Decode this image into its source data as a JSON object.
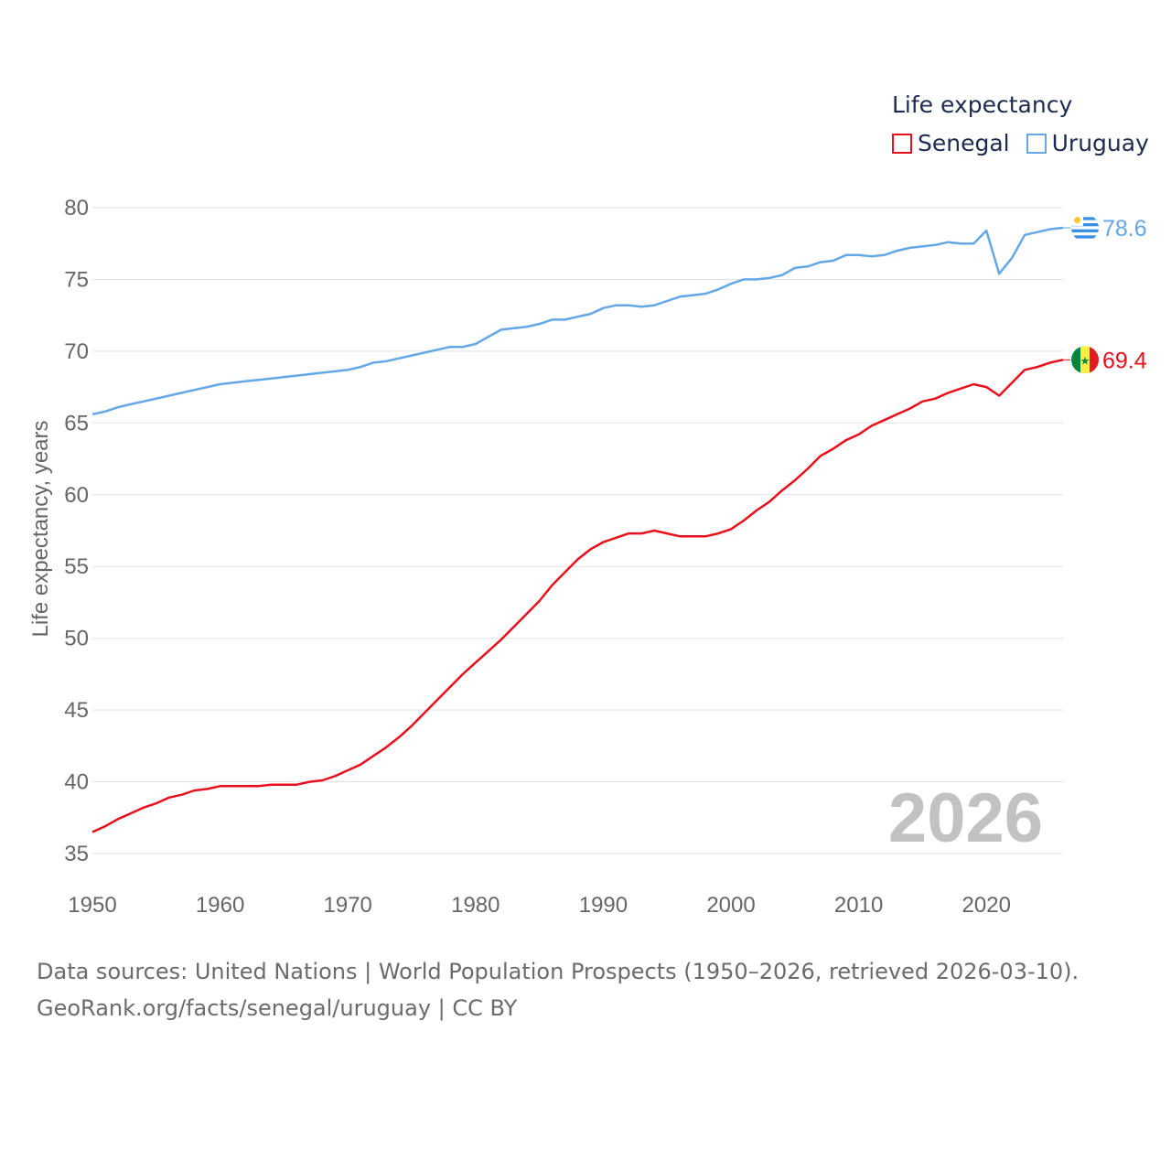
{
  "legend": {
    "title": "Life expectancy"
  },
  "source": {
    "line1": "Data sources: United Nations | World Population Prospects (1950–2026, retrieved 2026-03-10).",
    "line2": "GeoRank.org/facts/senegal/uruguay | CC BY"
  },
  "chart_data": {
    "type": "line",
    "title": "Life expectancy",
    "xlabel": "",
    "ylabel": "Life expectancy, years",
    "xlim": [
      1950,
      2026
    ],
    "ylim": [
      35,
      80
    ],
    "xticks": [
      1950,
      1960,
      1970,
      1980,
      1990,
      2000,
      2010,
      2020
    ],
    "yticks": [
      35,
      40,
      45,
      50,
      55,
      60,
      65,
      70,
      75,
      80
    ],
    "year_label": "2026",
    "grid": true,
    "legend_position": "top-right",
    "x": [
      1950,
      1951,
      1952,
      1953,
      1954,
      1955,
      1956,
      1957,
      1958,
      1959,
      1960,
      1961,
      1962,
      1963,
      1964,
      1965,
      1966,
      1967,
      1968,
      1969,
      1970,
      1971,
      1972,
      1973,
      1974,
      1975,
      1976,
      1977,
      1978,
      1979,
      1980,
      1981,
      1982,
      1983,
      1984,
      1985,
      1986,
      1987,
      1988,
      1989,
      1990,
      1991,
      1992,
      1993,
      1994,
      1995,
      1996,
      1997,
      1998,
      1999,
      2000,
      2001,
      2002,
      2003,
      2004,
      2005,
      2006,
      2007,
      2008,
      2009,
      2010,
      2011,
      2012,
      2013,
      2014,
      2015,
      2016,
      2017,
      2018,
      2019,
      2020,
      2021,
      2022,
      2023,
      2024,
      2025,
      2026
    ],
    "series": [
      {
        "name": "Senegal",
        "color": "#e8101d",
        "end_label": "69.4",
        "flag": "senegal-flag",
        "values": [
          36.5,
          36.9,
          37.4,
          37.8,
          38.2,
          38.5,
          38.9,
          39.1,
          39.4,
          39.5,
          39.7,
          39.7,
          39.7,
          39.7,
          39.8,
          39.8,
          39.8,
          40.0,
          40.1,
          40.4,
          40.8,
          41.2,
          41.8,
          42.4,
          43.1,
          43.9,
          44.8,
          45.7,
          46.6,
          47.5,
          48.3,
          49.1,
          49.9,
          50.8,
          51.7,
          52.6,
          53.7,
          54.6,
          55.5,
          56.2,
          56.7,
          57.0,
          57.3,
          57.3,
          57.5,
          57.3,
          57.1,
          57.1,
          57.1,
          57.3,
          57.6,
          58.2,
          58.9,
          59.5,
          60.3,
          61.0,
          61.8,
          62.7,
          63.2,
          63.8,
          64.2,
          64.8,
          65.2,
          65.6,
          66.0,
          66.5,
          66.7,
          67.1,
          67.4,
          67.7,
          67.5,
          66.9,
          67.8,
          68.7,
          68.9,
          69.2,
          69.4
        ]
      },
      {
        "name": "Uruguay",
        "color": "#64a7e6",
        "end_label": "78.6",
        "flag": "uruguay-flag",
        "values": [
          65.6,
          65.8,
          66.1,
          66.3,
          66.5,
          66.7,
          66.9,
          67.1,
          67.3,
          67.5,
          67.7,
          67.8,
          67.9,
          68.0,
          68.1,
          68.2,
          68.3,
          68.4,
          68.5,
          68.6,
          68.7,
          68.9,
          69.2,
          69.3,
          69.5,
          69.7,
          69.9,
          70.1,
          70.3,
          70.3,
          70.5,
          71.0,
          71.5,
          71.6,
          71.7,
          71.9,
          72.2,
          72.2,
          72.4,
          72.6,
          73.0,
          73.2,
          73.2,
          73.1,
          73.2,
          73.5,
          73.8,
          73.9,
          74.0,
          74.3,
          74.7,
          75.0,
          75.0,
          75.1,
          75.3,
          75.8,
          75.9,
          76.2,
          76.3,
          76.7,
          76.7,
          76.6,
          76.7,
          77.0,
          77.2,
          77.3,
          77.4,
          77.6,
          77.5,
          77.5,
          78.4,
          75.4,
          76.5,
          78.1,
          78.3,
          78.5,
          78.6
        ]
      }
    ]
  }
}
